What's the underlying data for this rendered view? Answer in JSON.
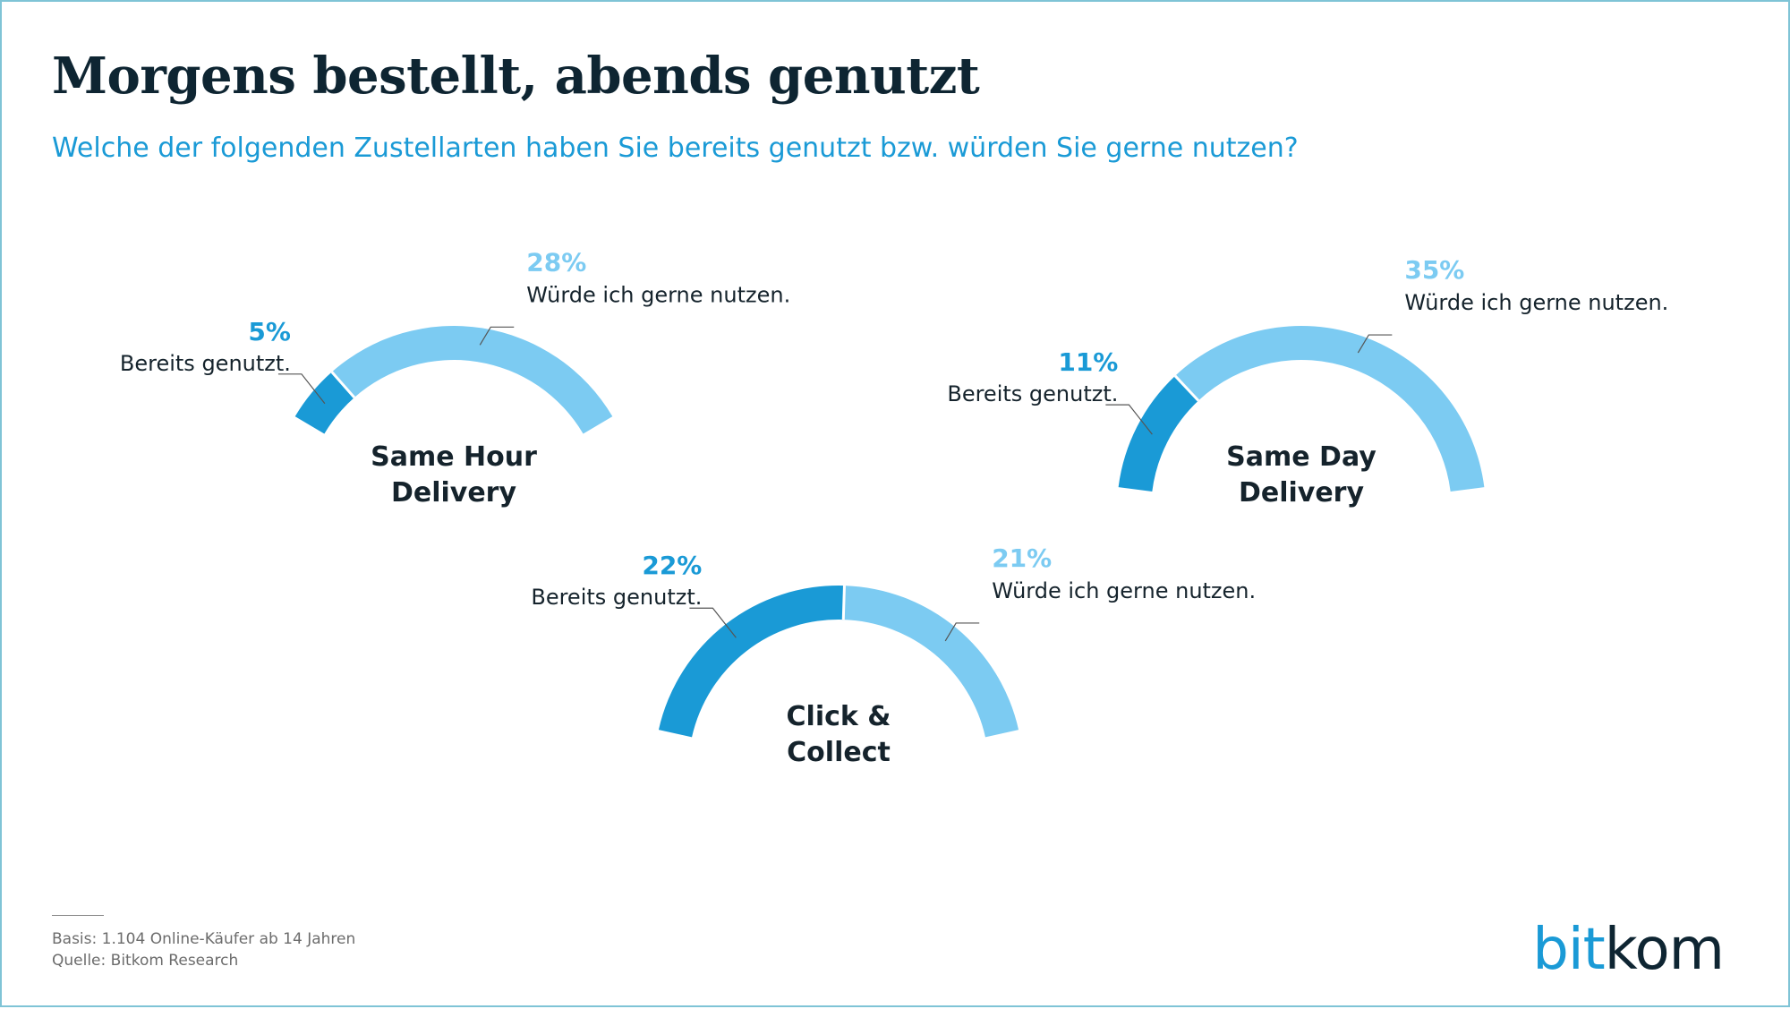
{
  "title": "Morgens bestellt, abends genutzt",
  "subtitle": "Welche der folgenden Zustellarten haben Sie bereits genutzt bzw. würden Sie gerne nutzen?",
  "colors": {
    "used": "#1a9ad6",
    "would_use": "#7ccbf2",
    "title": "#0e2532",
    "text": "#15232c",
    "leader": "#555555"
  },
  "chart_data": [
    {
      "type": "pie",
      "variant": "semi-donut",
      "category": [
        "Same Hour",
        "Delivery"
      ],
      "series": [
        {
          "name": "Bereits genutzt.",
          "value": 5,
          "label": "5%"
        },
        {
          "name": "Würde ich gerne nutzen.",
          "value": 28,
          "label": "28%"
        }
      ]
    },
    {
      "type": "pie",
      "variant": "semi-donut",
      "category": [
        "Same Day",
        "Delivery"
      ],
      "series": [
        {
          "name": "Bereits genutzt.",
          "value": 11,
          "label": "11%"
        },
        {
          "name": "Würde ich gerne nutzen.",
          "value": 35,
          "label": "35%"
        }
      ]
    },
    {
      "type": "pie",
      "variant": "semi-donut",
      "category": [
        "Click &",
        "Collect"
      ],
      "series": [
        {
          "name": "Bereits genutzt.",
          "value": 22,
          "label": "22%"
        },
        {
          "name": "Würde ich gerne nutzen.",
          "value": 21,
          "label": "21%"
        }
      ]
    }
  ],
  "footer": {
    "basis": "Basis: 1.104 Online-Käufer ab 14 Jahren",
    "source": "Quelle: Bitkom Research"
  },
  "logo": {
    "part1": "bit",
    "part2": "kom"
  }
}
